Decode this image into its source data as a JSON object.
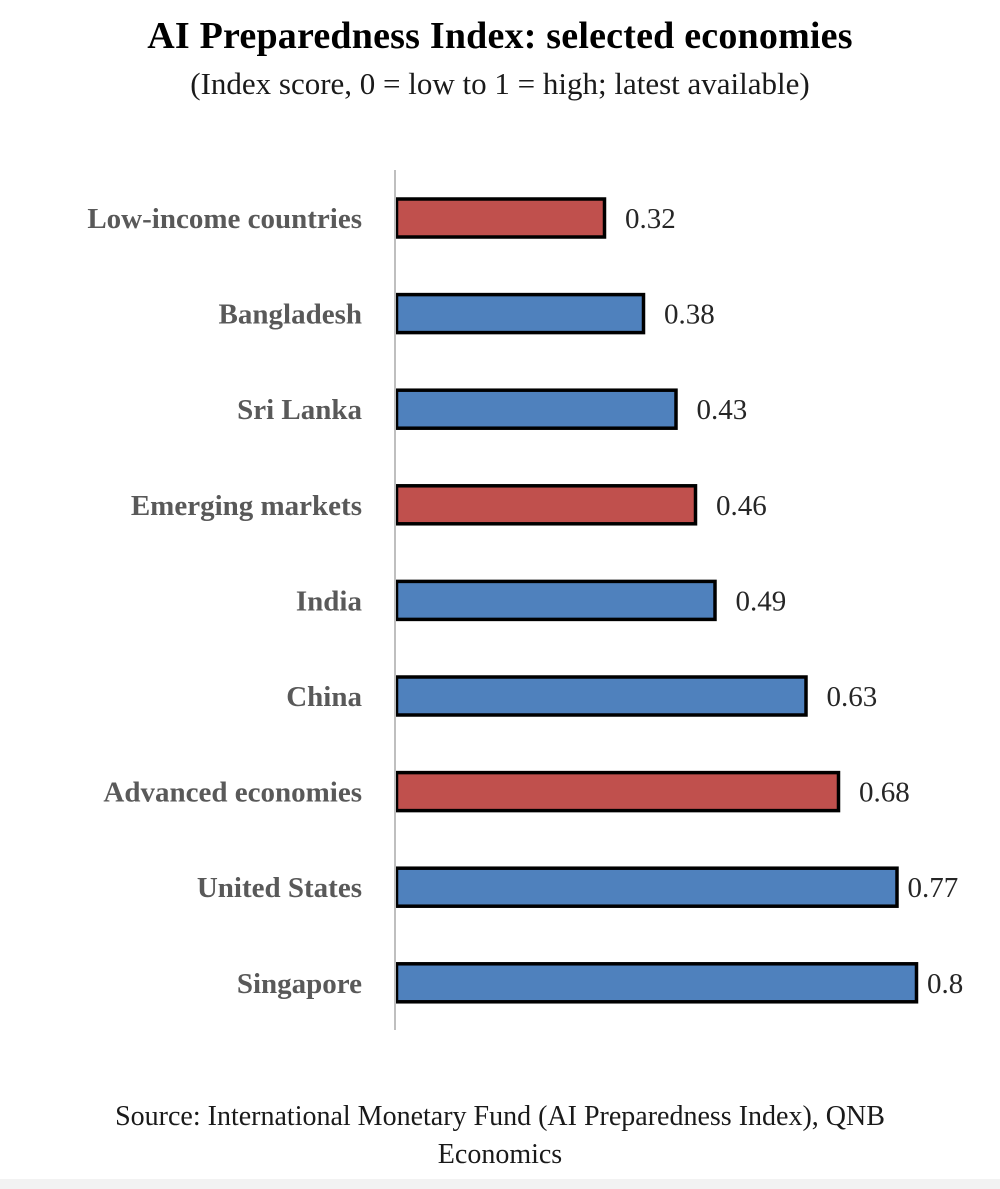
{
  "chart_data": {
    "type": "bar",
    "orientation": "horizontal",
    "title": "AI Preparedness Index: selected economies",
    "subtitle": "(Index score, 0 = low to 1 = high; latest available)",
    "categories": [
      "Low-income countries",
      "Bangladesh",
      "Sri Lanka",
      "Emerging markets",
      "India",
      "China",
      "Advanced economies",
      "United States",
      "Singapore"
    ],
    "values": [
      0.32,
      0.38,
      0.43,
      0.46,
      0.49,
      0.63,
      0.68,
      0.77,
      0.8
    ],
    "value_labels": [
      "0.32",
      "0.38",
      "0.43",
      "0.46",
      "0.49",
      "0.63",
      "0.68",
      "0.77",
      "0.8"
    ],
    "bar_colors": [
      "#c0504d",
      "#4f81bd",
      "#4f81bd",
      "#c0504d",
      "#4f81bd",
      "#4f81bd",
      "#c0504d",
      "#4f81bd",
      "#4f81bd"
    ],
    "xlim": [
      0,
      0.8
    ],
    "xlabel": "",
    "ylabel": "",
    "grid": false,
    "legend": "none",
    "source_lines": [
      "Source: International Monetary Fund (AI Preparedness Index), QNB",
      "Economics"
    ]
  }
}
